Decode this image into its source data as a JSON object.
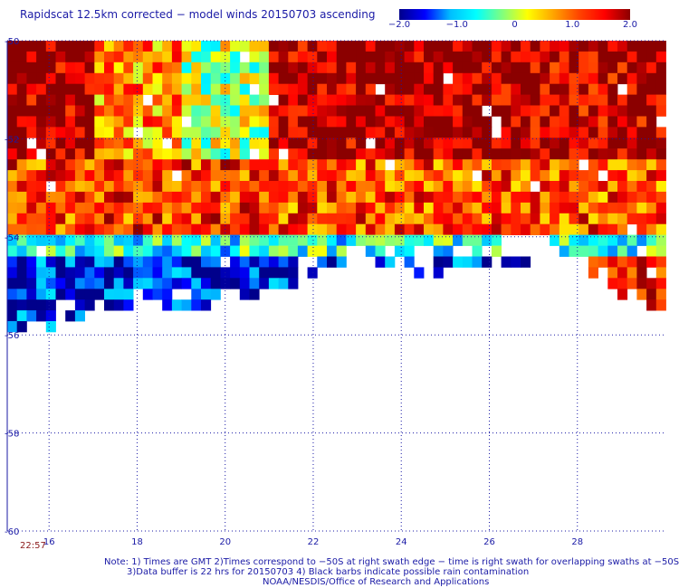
{
  "title": "Rapidscat 12.5km corrected − model winds 20150703 ascending",
  "colorbar": {
    "ticks": [
      "−2.0",
      "−1.0",
      "0",
      "1.0",
      "2.0"
    ],
    "tick_values": [
      -2.0,
      -1.0,
      0,
      1.0,
      2.0
    ],
    "stops": [
      "#00008b",
      "#0000ff",
      "#00bfff",
      "#00ffff",
      "#7fff7f",
      "#ffff00",
      "#ffa500",
      "#ff4500",
      "#ff0000",
      "#8b0000"
    ]
  },
  "time_label": "22:57",
  "notes": [
    "Note: 1) Times are GMT 2)Times correspond to −50S at right swath edge − time is right swath for overlapping swaths at −50S",
    "3)Data buffer is 22 hrs for 20150703 4) Black barbs indicate possible rain contamination",
    "NOAA/NESDIS/Office of Research and Applications"
  ],
  "chart_data": {
    "type": "heatmap",
    "title": "Rapidscat 12.5km corrected − model winds 20150703 ascending",
    "xlabel": "",
    "ylabel": "",
    "x_ticks": [
      "16",
      "18",
      "20",
      "22",
      "24",
      "26",
      "28"
    ],
    "x_tick_values": [
      16,
      18,
      20,
      22,
      24,
      26,
      28
    ],
    "y_ticks": [
      "-50",
      "-52",
      "-54",
      "-56",
      "-58",
      "-60"
    ],
    "y_tick_values": [
      -50,
      -52,
      -54,
      -56,
      -58,
      -60
    ],
    "xlim": [
      15.05,
      30.0
    ],
    "ylim": [
      -60,
      -50
    ],
    "grid": true,
    "value_range": [
      -2.0,
      2.0
    ],
    "cell_size_deg": 0.22,
    "coverage_southern_edge": {
      "x": [
        15.05,
        16.0,
        17.0,
        18.0,
        19.0,
        20.0,
        21.0,
        22.0,
        23.0,
        24.0,
        25.0,
        26.0,
        27.0,
        28.0,
        28.8,
        29.5,
        30.0
      ],
      "y": [
        -56.0,
        -55.9,
        -55.6,
        -55.6,
        -55.5,
        -55.4,
        -55.2,
        -54.8,
        -54.4,
        -54.7,
        -54.8,
        -54.6,
        -54.5,
        -54.5,
        -55.3,
        -55.5,
        -55.5
      ]
    },
    "regional_means": [
      {
        "lon_range": [
          15.05,
          17.0
        ],
        "lat_range": [
          -52.5,
          -50
        ],
        "mean": 1.9
      },
      {
        "lon_range": [
          17.0,
          19.0
        ],
        "lat_range": [
          -52.5,
          -50
        ],
        "mean": 0.8
      },
      {
        "lon_range": [
          19.0,
          21.0
        ],
        "lat_range": [
          -52.5,
          -50
        ],
        "mean": 0.0
      },
      {
        "lon_range": [
          21.0,
          23.0
        ],
        "lat_range": [
          -52.5,
          -50
        ],
        "mean": 1.9
      },
      {
        "lon_range": [
          23.0,
          26.0
        ],
        "lat_range": [
          -52.5,
          -50
        ],
        "mean": 2.0
      },
      {
        "lon_range": [
          26.0,
          30.0
        ],
        "lat_range": [
          -52.5,
          -50
        ],
        "mean": 1.8
      },
      {
        "lon_range": [
          15.05,
          21.0
        ],
        "lat_range": [
          -54,
          -52.5
        ],
        "mean": 1.2
      },
      {
        "lon_range": [
          21.0,
          30.0
        ],
        "lat_range": [
          -54,
          -52.5
        ],
        "mean": 1.1
      },
      {
        "lon_range": [
          15.05,
          30.0
        ],
        "lat_range": [
          -54.5,
          -54
        ],
        "mean": -0.6
      },
      {
        "lon_range": [
          15.05,
          23.0
        ],
        "lat_range": [
          -56,
          -54.5
        ],
        "mean": -1.6
      },
      {
        "lon_range": [
          28.2,
          30.0
        ],
        "lat_range": [
          -55.5,
          -54.5
        ],
        "mean": 1.3
      }
    ]
  }
}
